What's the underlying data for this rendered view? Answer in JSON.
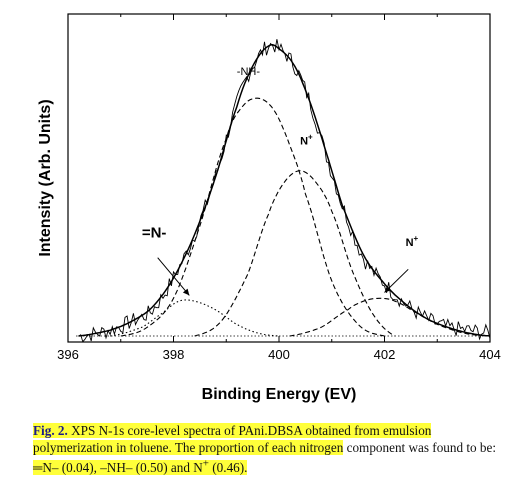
{
  "chart_data": {
    "type": "line",
    "xlabel": "Binding Energy (EV)",
    "ylabel": "Intensity (Arb. Units)",
    "xlim": [
      396,
      404
    ],
    "x_ticks": [
      396,
      398,
      400,
      402,
      404
    ],
    "y_ticks_shown": false,
    "grid": false,
    "legend": "none",
    "series": [
      {
        "style": "noisy-solid",
        "x": [
          396.2,
          396.8,
          397.2,
          397.6,
          398.0,
          398.4,
          398.8,
          399.2,
          399.5,
          399.8,
          400.0,
          400.3,
          400.6,
          400.9,
          401.2,
          401.6,
          402.0,
          402.4,
          402.8,
          403.2,
          403.6,
          404.0
        ],
        "values": [
          0.0,
          0.02,
          0.05,
          0.09,
          0.2,
          0.35,
          0.55,
          0.8,
          0.93,
          1.0,
          0.99,
          0.93,
          0.8,
          0.62,
          0.45,
          0.27,
          0.18,
          0.11,
          0.06,
          0.03,
          0.02,
          0.01
        ]
      },
      {
        "style": "fit-envelope",
        "x": [
          396.2,
          396.8,
          397.2,
          397.6,
          398.0,
          398.4,
          398.8,
          399.2,
          399.5,
          399.8,
          400.0,
          400.3,
          400.6,
          400.9,
          401.2,
          401.6,
          402.0,
          402.4,
          402.8,
          403.2,
          403.6,
          404.0
        ],
        "values": [
          0.0,
          0.02,
          0.05,
          0.1,
          0.2,
          0.35,
          0.55,
          0.79,
          0.93,
          1.0,
          0.99,
          0.93,
          0.8,
          0.63,
          0.45,
          0.28,
          0.18,
          0.11,
          0.06,
          0.03,
          0.01,
          0.0
        ]
      },
      {
        "name": "-NH-",
        "style": "dashed",
        "x": [
          397.0,
          397.5,
          398.0,
          398.5,
          399.0,
          399.3,
          399.6,
          399.9,
          400.2,
          400.5,
          401.0,
          401.5,
          402.0
        ],
        "values": [
          0.0,
          0.03,
          0.13,
          0.38,
          0.68,
          0.79,
          0.82,
          0.78,
          0.66,
          0.49,
          0.19,
          0.04,
          0.0
        ]
      },
      {
        "name": "N+",
        "style": "dashed",
        "x": [
          398.4,
          398.9,
          399.4,
          399.8,
          400.1,
          400.4,
          400.7,
          401.0,
          401.4,
          401.8,
          402.2
        ],
        "values": [
          0.0,
          0.05,
          0.21,
          0.42,
          0.53,
          0.57,
          0.53,
          0.43,
          0.22,
          0.07,
          0.0
        ]
      },
      {
        "name": "=N-",
        "style": "dotted",
        "x": [
          396.8,
          397.4,
          397.8,
          398.1,
          398.4,
          398.8,
          399.2,
          399.6,
          400.0
        ],
        "values": [
          0.0,
          0.03,
          0.08,
          0.12,
          0.12,
          0.09,
          0.04,
          0.01,
          0.0
        ]
      },
      {
        "name": "N+",
        "style": "dashed",
        "x": [
          400.2,
          400.8,
          401.3,
          401.6,
          401.9,
          402.2,
          402.6,
          403.0,
          403.5,
          404.0
        ],
        "values": [
          0.0,
          0.03,
          0.09,
          0.12,
          0.13,
          0.12,
          0.08,
          0.04,
          0.01,
          0.0
        ]
      }
    ],
    "annotations": [
      {
        "text": "-NH-",
        "x": 399.2,
        "y": 0.9
      },
      {
        "text": "N",
        "sup": "+",
        "x": 400.4,
        "y": 0.66
      },
      {
        "text": "=N-",
        "x": 397.4,
        "y": 0.34
      },
      {
        "text": "N",
        "sup": "+",
        "x": 402.4,
        "y": 0.31
      }
    ]
  },
  "caption": {
    "fig_label": "Fig. 2.",
    "text_highlighted_1": "XPS N-1s core-level spectra of PAni.DBSA obtained from emulsion polymerization in toluene. The proportion of each nitrogen",
    "text_plain": "component was found to be: ",
    "text_highlighted_2": "═N– (0.04), –NH– (0.50) and N",
    "sup": "+",
    "text_highlighted_3": " (0.46)."
  }
}
